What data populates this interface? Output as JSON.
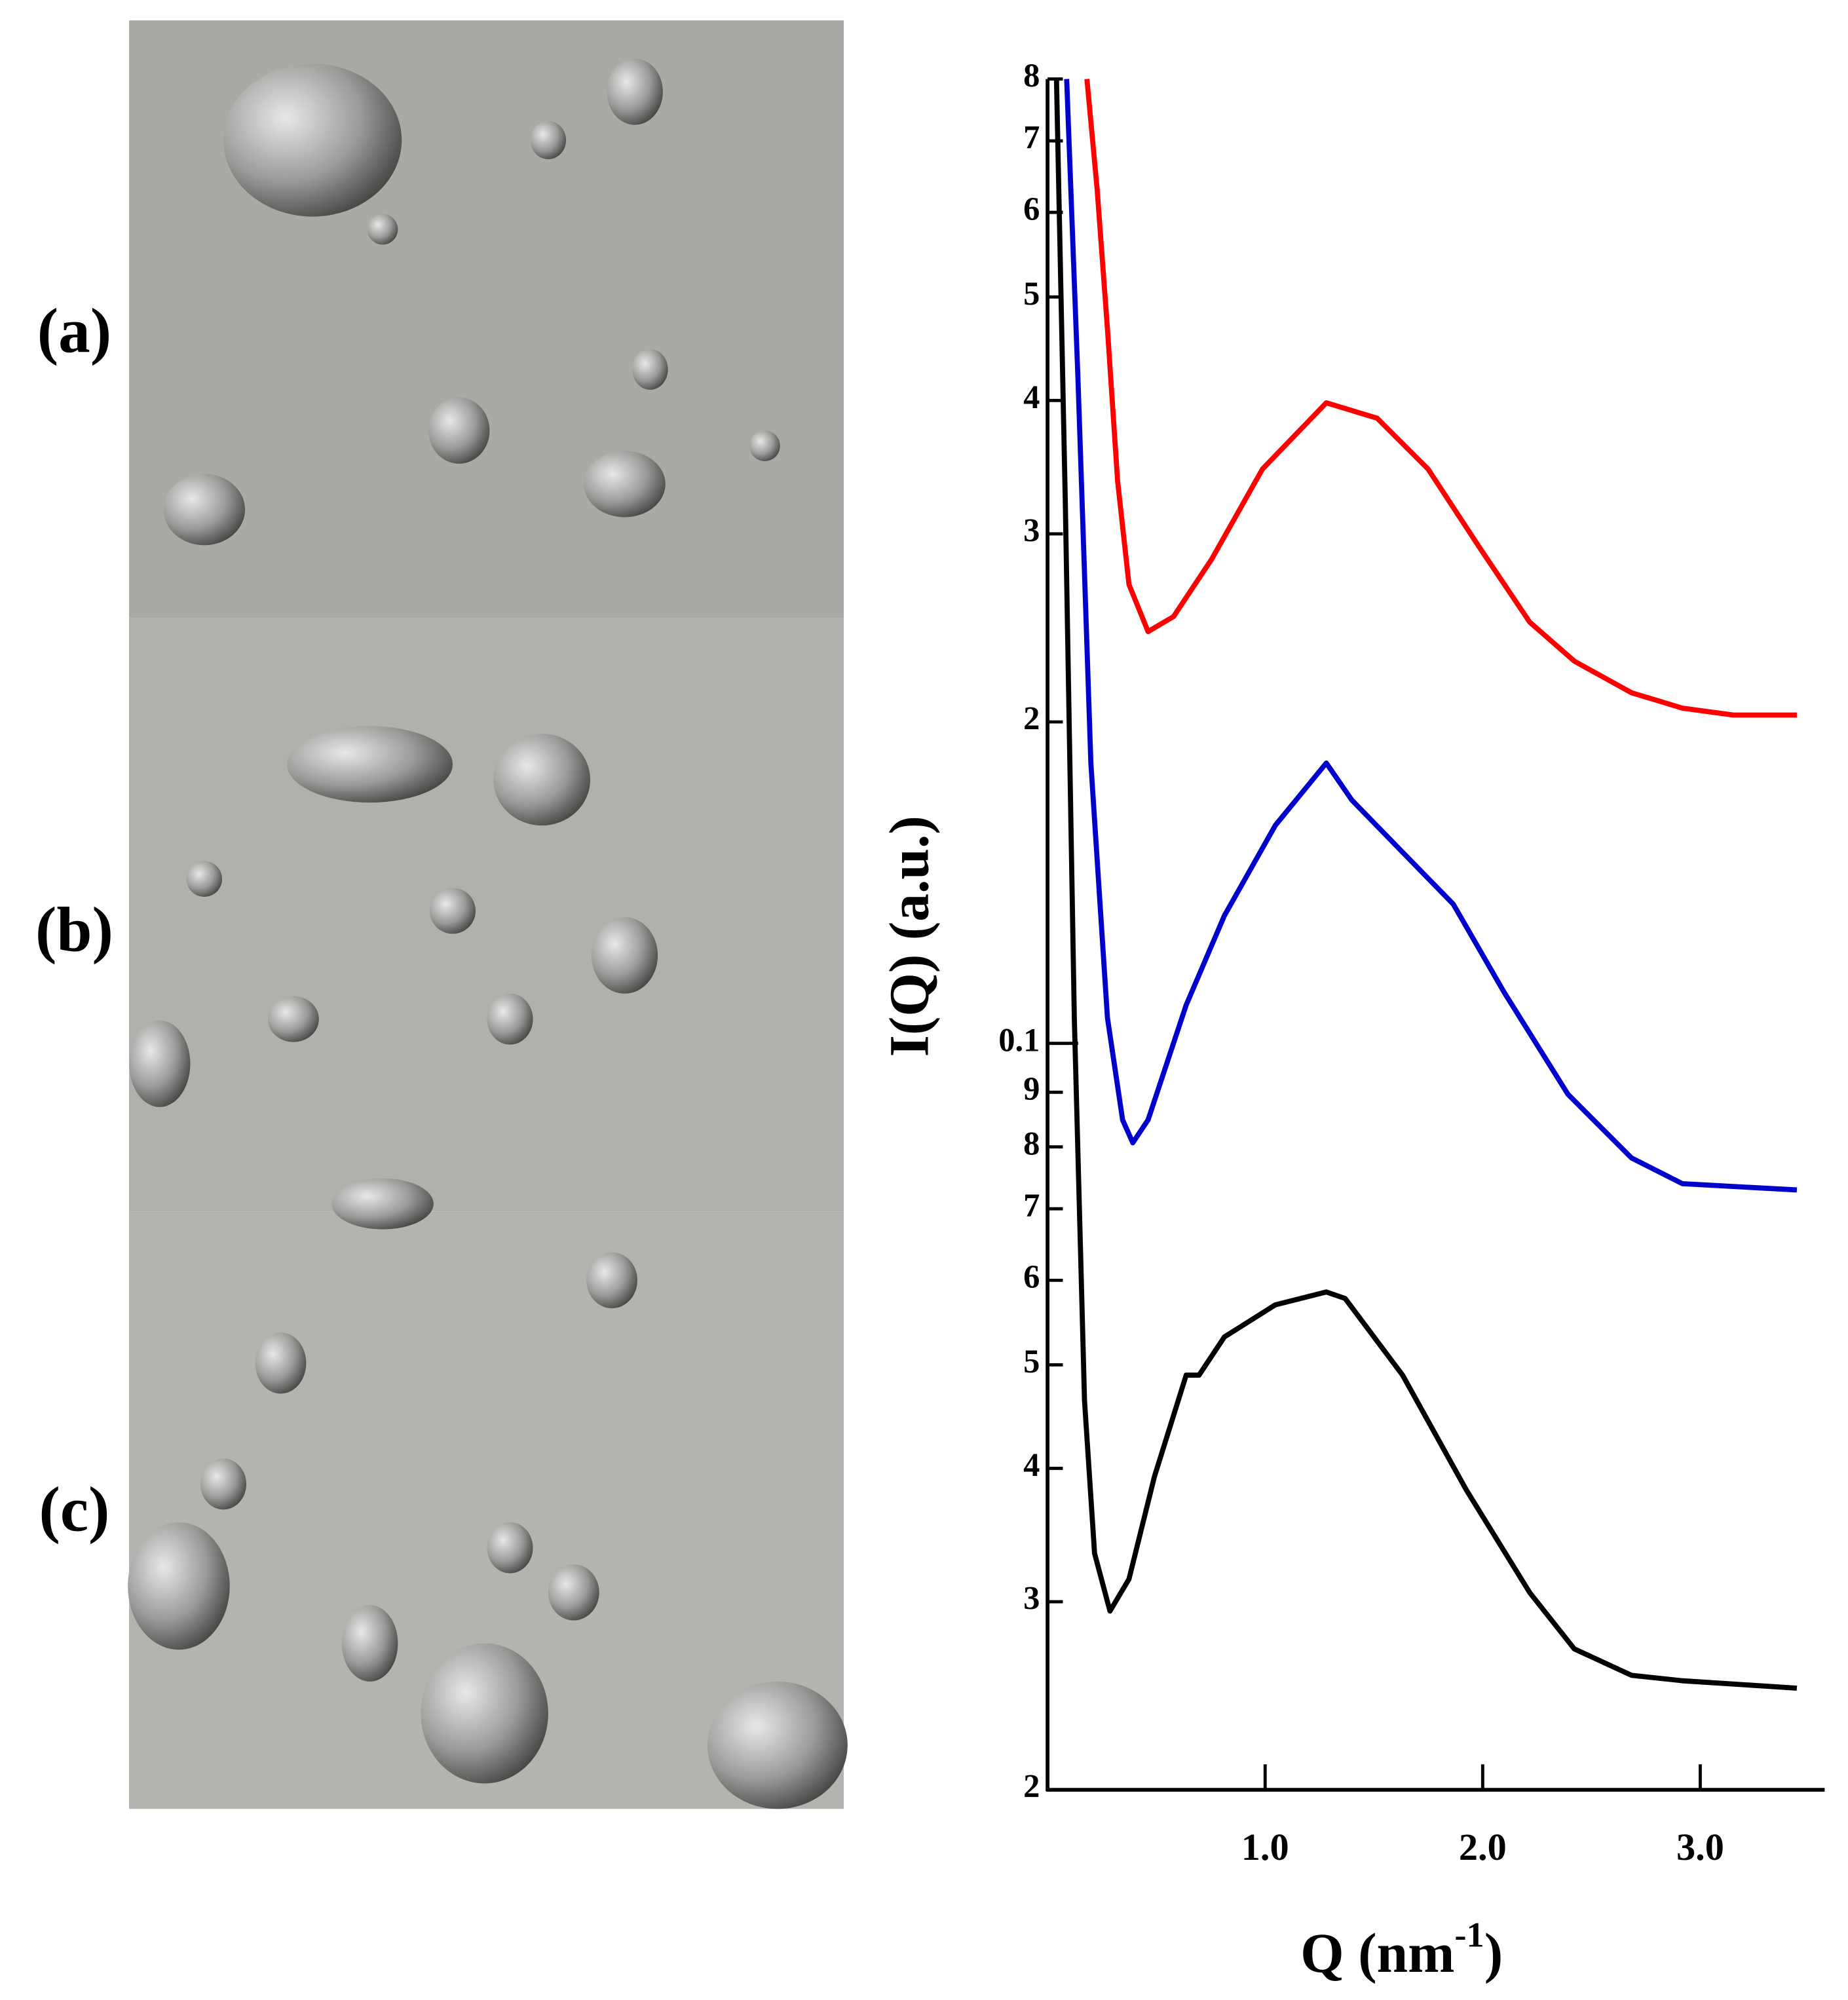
{
  "panels": [
    {
      "label": "(a)"
    },
    {
      "label": "(b)"
    },
    {
      "label": "(c)"
    }
  ],
  "chart_data": {
    "type": "line",
    "x_label": {
      "text": "Q (nm",
      "sup": "-1",
      "end": ")"
    },
    "y_label": "I(Q) (a.u.)",
    "log_y": true,
    "xlim": [
      0,
      3.56
    ],
    "xticks": [
      {
        "value": 1,
        "label": "1.0"
      },
      {
        "value": 2,
        "label": "2.0"
      },
      {
        "value": 3,
        "label": "3.0"
      }
    ],
    "ylim": [
      0.02,
      0.8
    ],
    "yticks": [
      {
        "value": 0.02,
        "label": "2"
      },
      {
        "value": 0.03,
        "label": "3"
      },
      {
        "value": 0.04,
        "label": "4"
      },
      {
        "value": 0.05,
        "label": "5"
      },
      {
        "value": 0.06,
        "label": "6"
      },
      {
        "value": 0.07,
        "label": "7"
      },
      {
        "value": 0.08,
        "label": "8"
      },
      {
        "value": 0.09,
        "label": "9"
      },
      0.1,
      {
        "value": 0.2,
        "label": "2"
      },
      {
        "value": 0.3,
        "label": "3"
      },
      {
        "value": 0.4,
        "label": "4"
      },
      {
        "value": 0.5,
        "label": "5"
      },
      {
        "value": 0.6,
        "label": "6"
      },
      {
        "value": 0.7,
        "label": "7"
      },
      {
        "value": 0.8,
        "label": "8"
      }
    ],
    "series": [
      {
        "color": "#ff0000",
        "x": [
          0.181,
          0.228,
          0.275,
          0.322,
          0.374,
          0.462,
          0.579,
          0.754,
          0.988,
          1.281,
          1.515,
          1.749,
          1.982,
          2.216,
          2.421,
          2.684,
          2.918,
          3.152,
          3.444
        ],
        "values": [
          0.8,
          0.631,
          0.467,
          0.336,
          0.269,
          0.243,
          0.251,
          0.284,
          0.345,
          0.398,
          0.385,
          0.345,
          0.292,
          0.248,
          0.228,
          0.213,
          0.206,
          0.203,
          0.203
        ]
      },
      {
        "color": "#0000cc",
        "x": [
          0.088,
          0.14,
          0.199,
          0.275,
          0.345,
          0.392,
          0.462,
          0.637,
          0.813,
          1.047,
          1.281,
          1.398,
          1.632,
          1.865,
          2.099,
          2.392,
          2.684,
          2.918,
          3.444
        ],
        "values": [
          0.8,
          0.418,
          0.183,
          0.1057,
          0.0848,
          0.0807,
          0.0848,
          0.1086,
          0.1317,
          0.16,
          0.183,
          0.169,
          0.151,
          0.135,
          0.1116,
          0.0896,
          0.0781,
          0.0739,
          0.0729
        ]
      },
      {
        "color": "#000000",
        "x": [
          0.041,
          0.082,
          0.123,
          0.17,
          0.216,
          0.287,
          0.374,
          0.491,
          0.637,
          0.696,
          0.813,
          1.047,
          1.281,
          1.368,
          1.632,
          1.924,
          2.216,
          2.421,
          2.684,
          2.918,
          3.444
        ],
        "values": [
          0.8,
          0.318,
          0.1057,
          0.0463,
          0.0333,
          0.0294,
          0.0315,
          0.0393,
          0.0489,
          0.0489,
          0.0531,
          0.0569,
          0.0585,
          0.0577,
          0.0489,
          0.0382,
          0.0306,
          0.0271,
          0.0256,
          0.0253,
          0.0249
        ]
      }
    ]
  }
}
